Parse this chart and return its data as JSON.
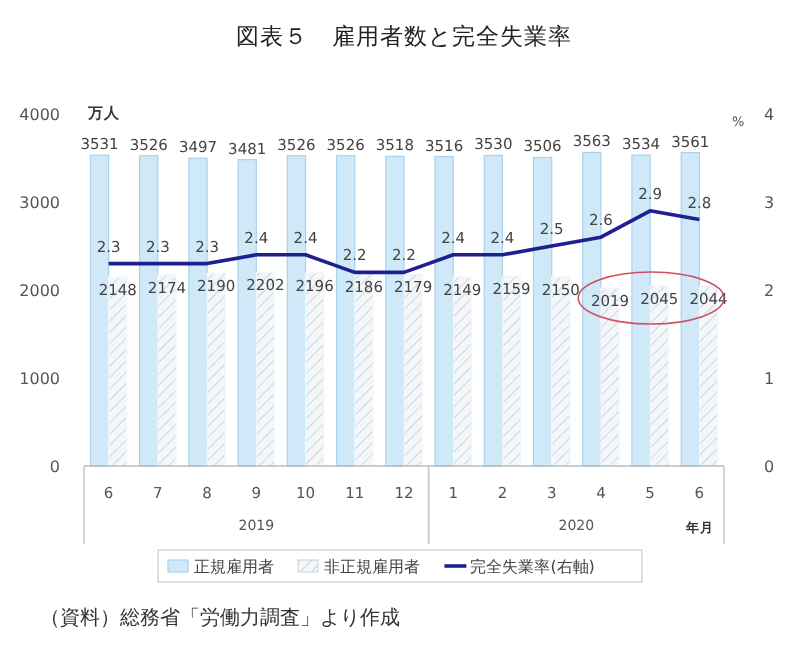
{
  "chart_data": {
    "type": "bar",
    "title": "図表５　雇用者数と完全失業率",
    "ylabel": "万人",
    "y2label": "%",
    "xlabel": "年月",
    "categories": [
      "6",
      "7",
      "8",
      "9",
      "10",
      "11",
      "12",
      "1",
      "2",
      "3",
      "4",
      "5",
      "6"
    ],
    "series": [
      {
        "name": "正規雇用者",
        "color": "#cfe9f9",
        "values": [
          3531,
          3526,
          3497,
          3481,
          3526,
          3526,
          3518,
          3516,
          3530,
          3506,
          3563,
          3534,
          3561
        ]
      },
      {
        "name": "非正規雇用者",
        "color": "#f4f7fa",
        "values": [
          2148,
          2174,
          2190,
          2202,
          2196,
          2186,
          2179,
          2149,
          2159,
          2150,
          2019,
          2045,
          2044
        ]
      },
      {
        "name": "完全失業率(右軸)",
        "type": "line",
        "axis": "y2",
        "color": "#1f1f8f",
        "values": [
          2.3,
          2.3,
          2.3,
          2.4,
          2.4,
          2.2,
          2.2,
          2.4,
          2.4,
          2.5,
          2.6,
          2.9,
          2.8
        ]
      }
    ],
    "ylim": [
      0,
      4000
    ],
    "yticks": [
      0,
      1000,
      2000,
      3000,
      4000
    ],
    "y2lim": [
      0,
      4
    ],
    "y2ticks": [
      0,
      1,
      2,
      3,
      4
    ],
    "data_labels": true,
    "legend": "bottom",
    "grid": false,
    "annotations": [
      "2019",
      "2020",
      "（資料）総務省「労働力調査」より作成"
    ]
  }
}
